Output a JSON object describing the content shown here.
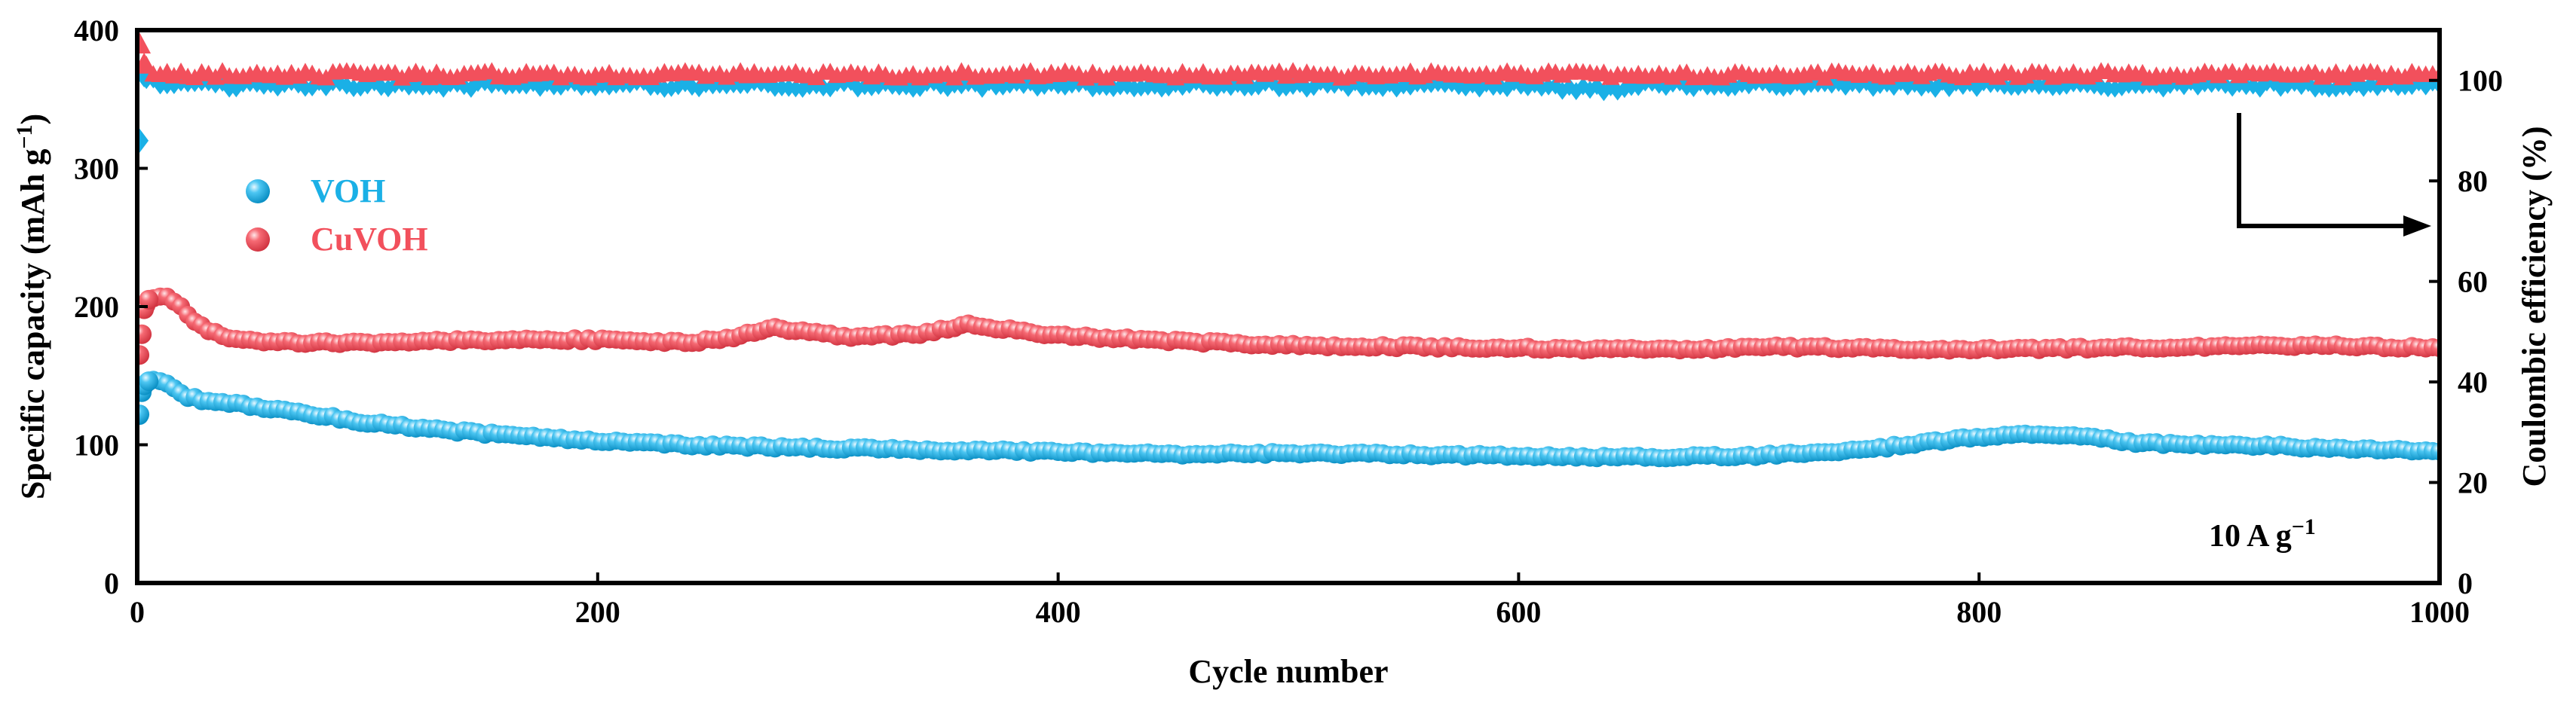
{
  "chart_data": {
    "type": "scatter",
    "title": "",
    "xlabel": "Cycle number",
    "ylabel_left": "Specific capacity (mAh g",
    "ylabel_left_sup": "−1",
    "ylabel_left_close": ")",
    "ylabel_right": "Coulombic efficiency (%)",
    "xlim": [
      0,
      1000
    ],
    "ylim_left": [
      0,
      400
    ],
    "ylim_right": [
      0,
      110
    ],
    "x_ticks": [
      "0",
      "200",
      "400",
      "600",
      "800",
      "1000"
    ],
    "y_left_ticks": [
      "0",
      "100",
      "200",
      "300",
      "400"
    ],
    "y_right_ticks": [
      "0",
      "20",
      "40",
      "60",
      "80",
      "100"
    ],
    "annotation": {
      "text": "10 A g",
      "sup": "−1"
    },
    "legend": {
      "placement": "upper-left",
      "entries": [
        "VOH",
        "CuVOH"
      ]
    },
    "colors": {
      "VOH": "#1ab0e6",
      "CuVOH": "#f2505c"
    },
    "series": [
      {
        "name": "VOH",
        "axis": "left",
        "marker": "sphere",
        "x": [
          1,
          2,
          3,
          5,
          8,
          12,
          16,
          20,
          30,
          45,
          60,
          80,
          100,
          130,
          160,
          200,
          240,
          280,
          320,
          360,
          400,
          450,
          500,
          550,
          600,
          650,
          700,
          740,
          770,
          790,
          810,
          830,
          850,
          870,
          900,
          930,
          960,
          1000
        ],
        "y": [
          122,
          138,
          143,
          146,
          147,
          145,
          141,
          136,
          131,
          129,
          126,
          121,
          116,
          111,
          107,
          103,
          100,
          98,
          97,
          96,
          95,
          93,
          94,
          93,
          92,
          91,
          92,
          95,
          100,
          104,
          107,
          108,
          105,
          101,
          100,
          99,
          97,
          96
        ]
      },
      {
        "name": "CuVOH",
        "axis": "left",
        "marker": "sphere",
        "x": [
          1,
          2,
          3,
          5,
          8,
          12,
          16,
          20,
          25,
          30,
          40,
          50,
          60,
          80,
          100,
          130,
          160,
          200,
          240,
          260,
          275,
          290,
          310,
          340,
          360,
          380,
          400,
          450,
          500,
          550,
          600,
          640,
          680,
          700,
          750,
          800,
          850,
          900,
          950,
          1000
        ],
        "y": [
          165,
          180,
          198,
          205,
          208,
          208,
          204,
          198,
          190,
          183,
          177,
          175,
          174,
          174,
          174,
          175,
          176,
          176,
          174,
          178,
          185,
          182,
          178,
          180,
          187,
          183,
          179,
          175,
          172,
          171,
          170,
          169,
          169,
          171,
          170,
          169,
          170,
          171,
          172,
          170
        ]
      },
      {
        "name": "VOH Coulombic efficiency",
        "axis": "right",
        "marker": "diamond",
        "x": [
          1,
          3,
          5,
          10,
          30,
          60,
          100,
          150,
          200,
          250,
          300,
          350,
          400,
          450,
          500,
          550,
          600,
          642,
          650,
          700,
          750,
          800,
          850,
          900,
          950,
          1000
        ],
        "y": [
          88,
          101,
          100,
          99,
          99,
          99,
          99,
          99,
          99,
          99,
          99,
          99,
          99,
          99,
          99,
          99,
          99,
          98,
          99,
          99,
          99,
          99,
          99,
          99,
          99,
          99
        ]
      },
      {
        "name": "CuVOH Coulombic efficiency",
        "axis": "right",
        "marker": "triangle",
        "x": [
          1,
          3,
          5,
          10,
          30,
          60,
          100,
          118,
          150,
          200,
          250,
          300,
          350,
          400,
          450,
          500,
          550,
          600,
          650,
          700,
          750,
          800,
          850,
          900,
          950,
          1000
        ],
        "y": [
          107,
          103,
          102,
          101,
          101,
          101,
          101,
          101,
          101,
          101,
          101,
          101,
          101,
          101,
          101,
          101,
          101,
          101,
          101,
          101,
          101,
          101,
          101,
          101,
          101,
          101
        ]
      }
    ]
  }
}
